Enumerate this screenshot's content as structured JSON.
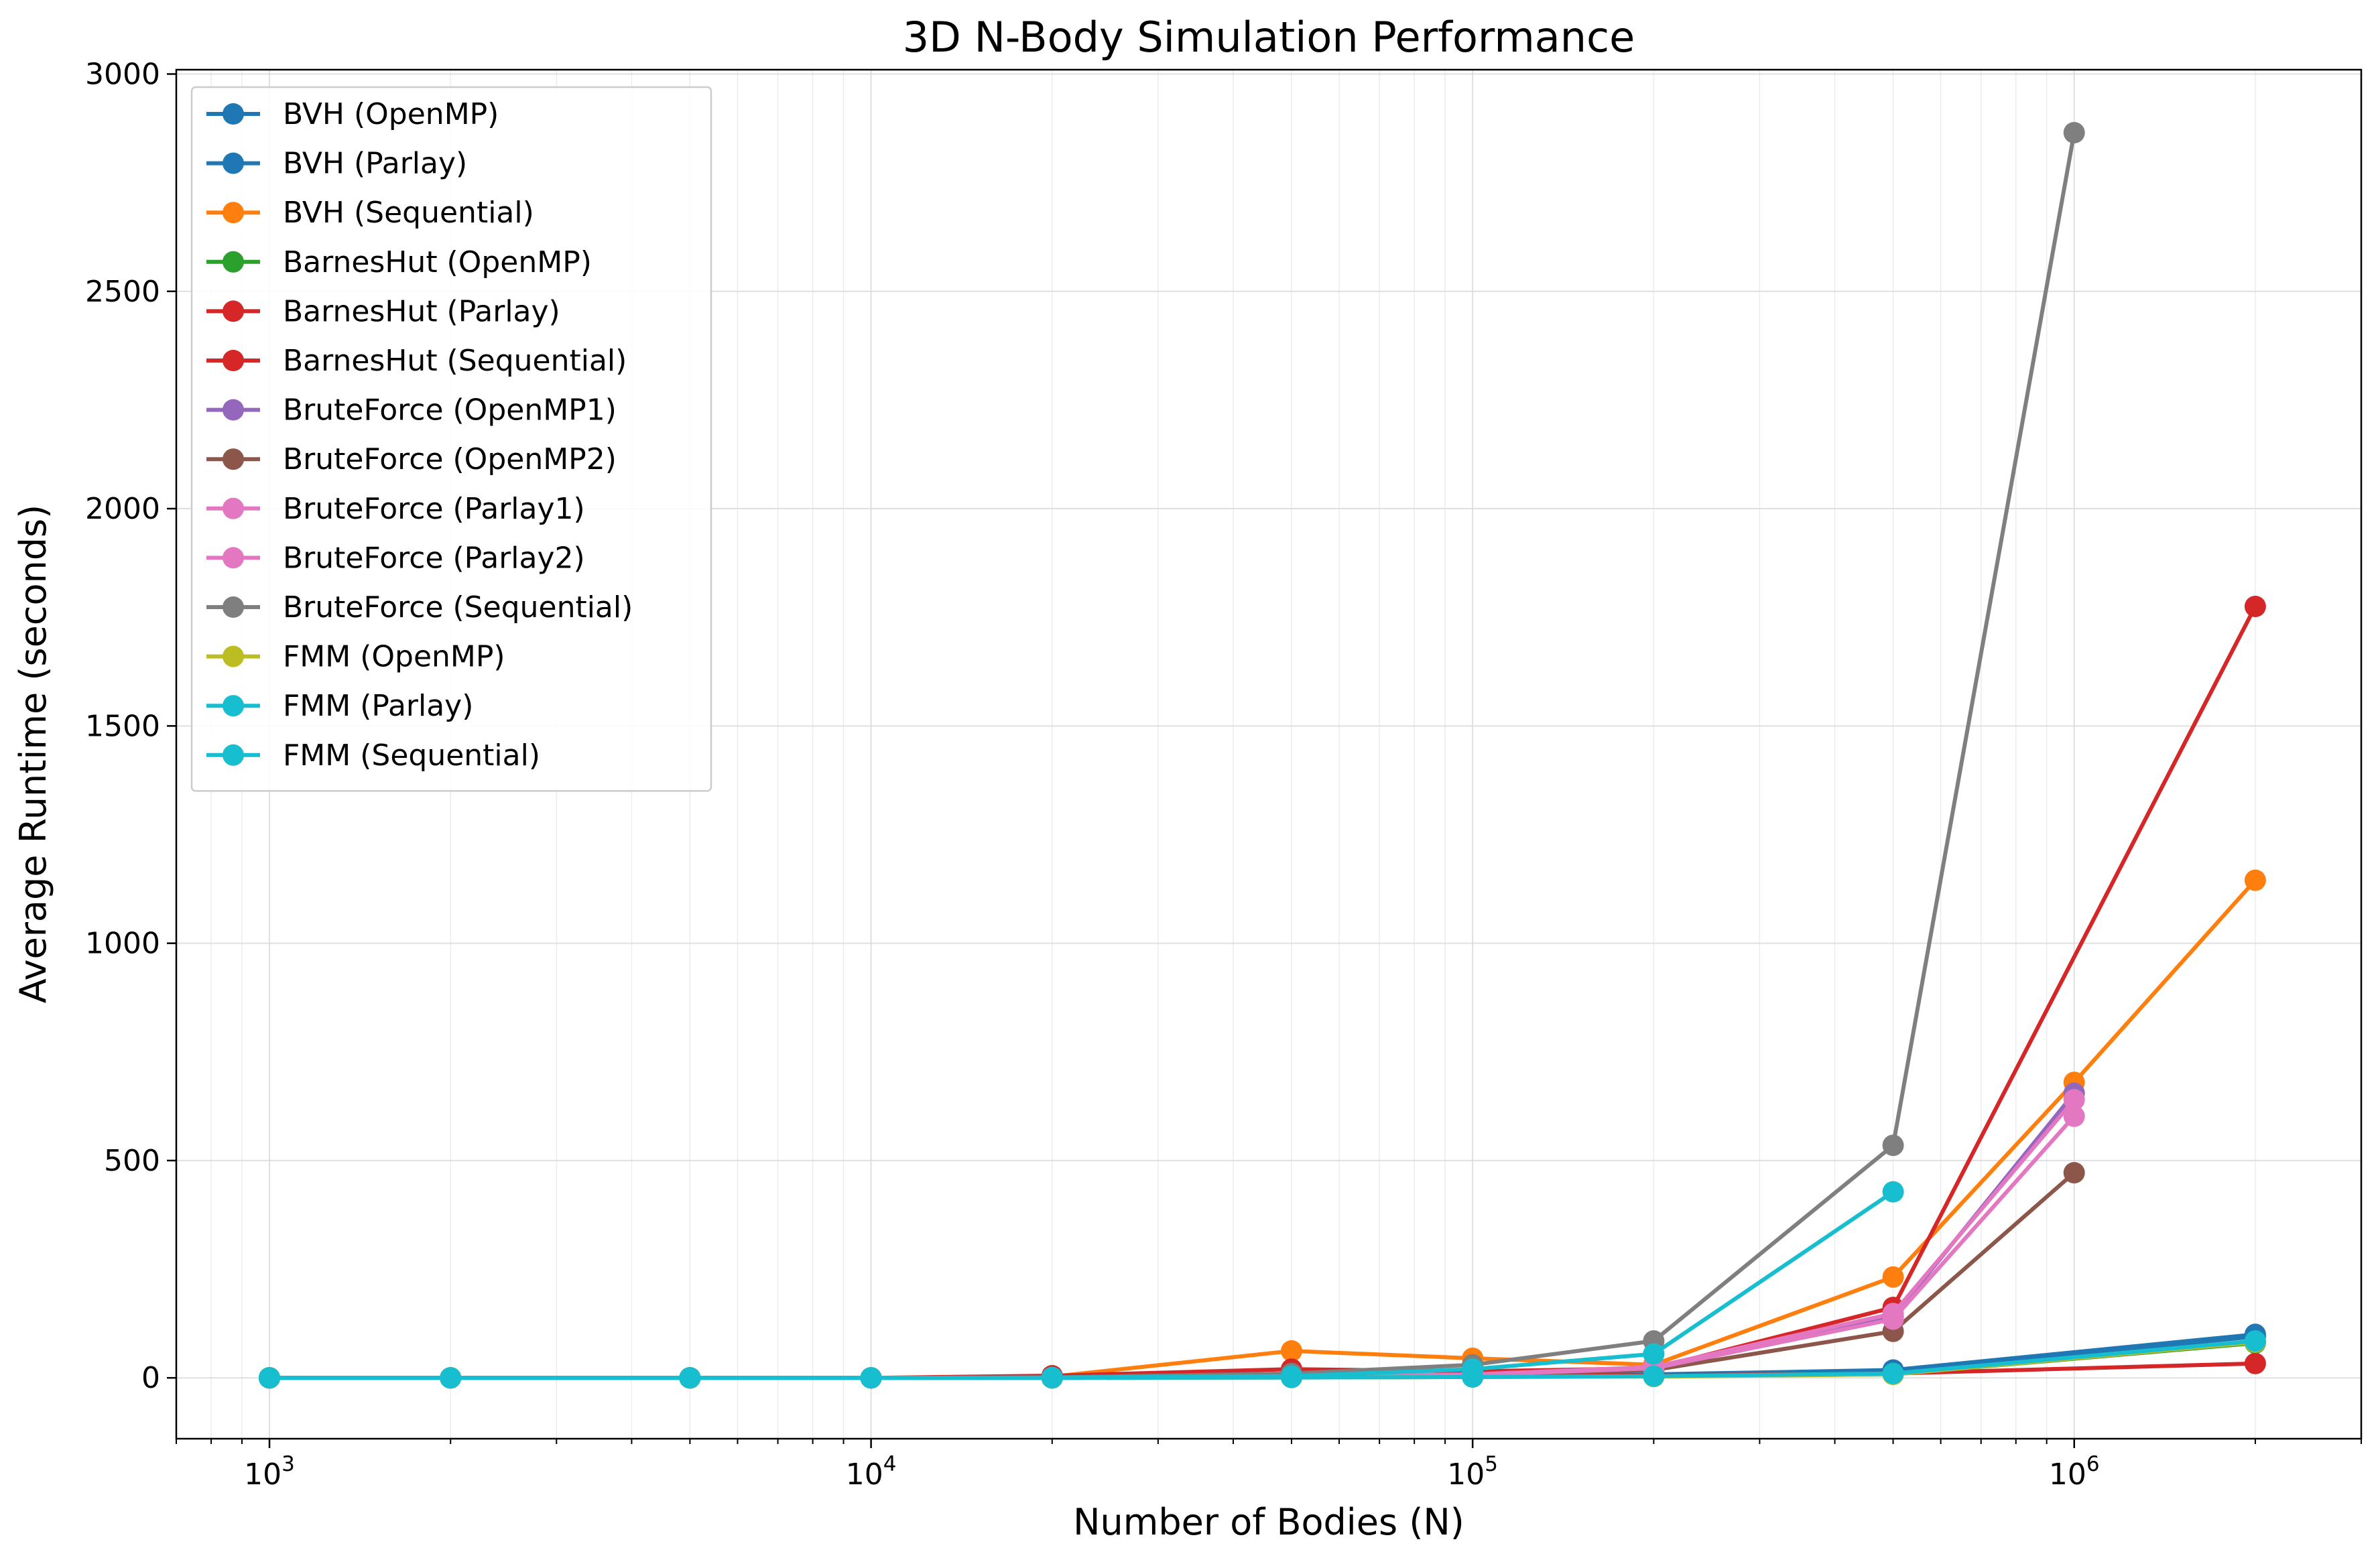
{
  "chart_data": {
    "type": "line",
    "title": "3D N-Body Simulation Performance",
    "xlabel": "Number of Bodies (N)",
    "ylabel": "Average Runtime (seconds)",
    "xscale": "log",
    "xlim": [
      700,
      3000000
    ],
    "ylim": [
      -140,
      3010
    ],
    "yticks": [
      0,
      500,
      1000,
      1500,
      2000,
      2500,
      3000
    ],
    "xticks": [
      {
        "value": 1000,
        "base": "10",
        "exp": "3"
      },
      {
        "value": 10000,
        "base": "10",
        "exp": "4"
      },
      {
        "value": 100000,
        "base": "10",
        "exp": "5"
      },
      {
        "value": 1000000,
        "base": "10",
        "exp": "6"
      }
    ],
    "grid": true,
    "legend_position": "top-left",
    "series": [
      {
        "name": "BVH (OpenMP)",
        "color": "#1f77b4",
        "x": [
          1000,
          2000,
          5000,
          10000,
          20000,
          50000,
          100000,
          200000,
          500000,
          2000000
        ],
        "y": [
          0,
          0,
          0,
          0,
          0,
          2,
          4,
          8,
          18,
          100
        ]
      },
      {
        "name": "BVH (Parlay)",
        "color": "#1f77b4",
        "x": [
          1000,
          2000,
          5000,
          10000,
          20000,
          50000,
          100000,
          200000,
          500000,
          2000000
        ],
        "y": [
          0,
          0,
          0,
          0,
          0,
          2,
          3,
          7,
          14,
          95
        ]
      },
      {
        "name": "BVH (Sequential)",
        "color": "#ff7f0e",
        "x": [
          1000,
          2000,
          5000,
          10000,
          20000,
          50000,
          100000,
          200000,
          500000,
          1000000,
          2000000
        ],
        "y": [
          0,
          0,
          0,
          0,
          3,
          62,
          45,
          30,
          232,
          680,
          1145
        ]
      },
      {
        "name": "BarnesHut (OpenMP)",
        "color": "#2ca02c",
        "x": [
          1000,
          2000,
          5000,
          10000,
          20000,
          50000,
          100000,
          200000,
          500000,
          2000000
        ],
        "y": [
          0,
          0,
          0,
          0,
          0,
          1,
          2,
          4,
          8,
          80
        ]
      },
      {
        "name": "BarnesHut (Parlay)",
        "color": "#d62728",
        "x": [
          1000,
          2000,
          5000,
          10000,
          20000,
          50000,
          100000,
          200000,
          500000,
          2000000
        ],
        "y": [
          0,
          0,
          0,
          0,
          1,
          3,
          5,
          6,
          10,
          33
        ]
      },
      {
        "name": "BarnesHut (Sequential)",
        "color": "#d62728",
        "x": [
          1000,
          2000,
          5000,
          10000,
          20000,
          50000,
          100000,
          200000,
          500000,
          2000000
        ],
        "y": [
          0,
          0,
          0,
          0,
          5,
          20,
          15,
          22,
          162,
          1775
        ]
      },
      {
        "name": "BruteForce (OpenMP1)",
        "color": "#9467bd",
        "x": [
          1000,
          2000,
          5000,
          10000,
          20000,
          50000,
          100000,
          200000,
          500000,
          1000000
        ],
        "y": [
          0,
          0,
          0,
          0,
          0,
          2,
          8,
          20,
          140,
          655
        ]
      },
      {
        "name": "BruteForce (OpenMP2)",
        "color": "#8c564b",
        "x": [
          1000,
          2000,
          5000,
          10000,
          20000,
          50000,
          100000,
          200000,
          500000,
          1000000
        ],
        "y": [
          0,
          0,
          0,
          0,
          0,
          2,
          6,
          18,
          107,
          472
        ]
      },
      {
        "name": "BruteForce (Parlay1)",
        "color": "#e377c2",
        "x": [
          1000,
          2000,
          5000,
          10000,
          20000,
          50000,
          100000,
          200000,
          500000,
          1000000
        ],
        "y": [
          0,
          0,
          0,
          0,
          0,
          2,
          8,
          25,
          148,
          640
        ]
      },
      {
        "name": "BruteForce (Parlay2)",
        "color": "#e377c2",
        "x": [
          1000,
          2000,
          5000,
          10000,
          20000,
          50000,
          100000,
          200000,
          500000,
          1000000
        ],
        "y": [
          0,
          0,
          0,
          0,
          0,
          2,
          7,
          22,
          135,
          602
        ]
      },
      {
        "name": "BruteForce (Sequential)",
        "color": "#7f7f7f",
        "x": [
          1000,
          2000,
          5000,
          10000,
          20000,
          50000,
          100000,
          200000,
          500000,
          1000000
        ],
        "y": [
          0,
          0,
          0,
          0,
          1,
          10,
          30,
          85,
          535,
          2865
        ]
      },
      {
        "name": "FMM (OpenMP)",
        "color": "#bcbd22",
        "x": [
          1000,
          2000,
          5000,
          10000,
          20000,
          50000,
          100000,
          200000,
          500000,
          2000000
        ],
        "y": [
          0,
          0,
          0,
          0,
          0,
          1,
          2,
          3,
          8,
          82
        ]
      },
      {
        "name": "FMM (Parlay)",
        "color": "#17becf",
        "x": [
          1000,
          2000,
          5000,
          10000,
          20000,
          50000,
          100000,
          200000,
          500000,
          2000000
        ],
        "y": [
          0,
          0,
          0,
          0,
          0,
          1,
          2,
          4,
          10,
          85
        ]
      },
      {
        "name": "FMM (Sequential)",
        "color": "#17becf",
        "x": [
          1000,
          2000,
          5000,
          10000,
          20000,
          50000,
          100000,
          200000,
          500000
        ],
        "y": [
          0,
          0,
          0,
          0,
          1,
          4,
          20,
          55,
          428
        ]
      }
    ]
  }
}
